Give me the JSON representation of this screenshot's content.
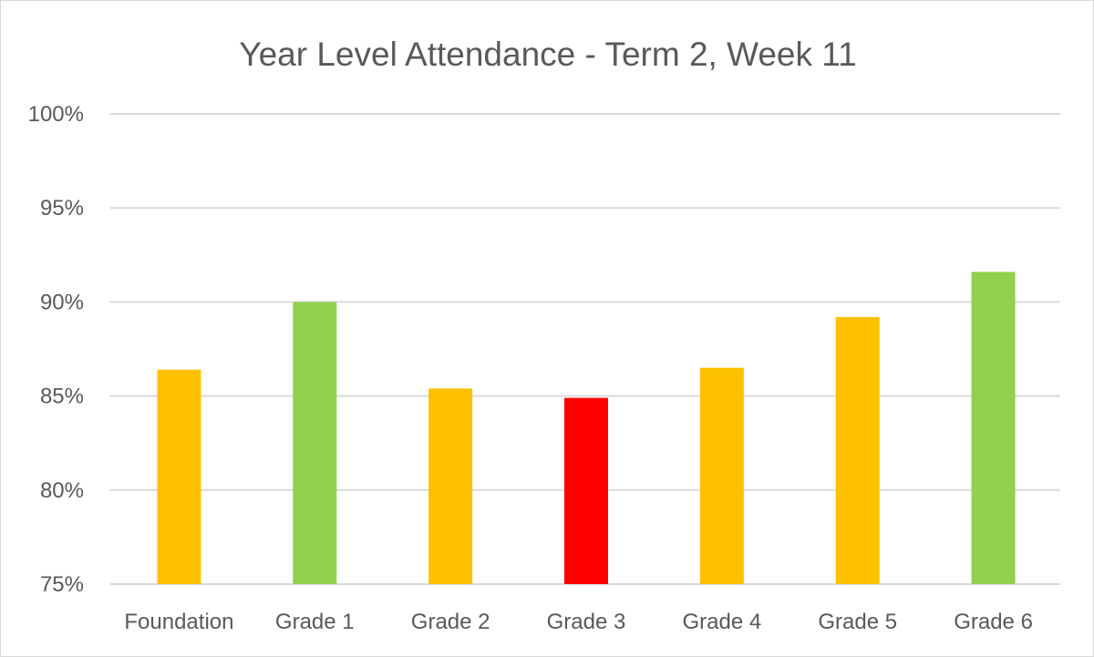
{
  "chart_data": {
    "type": "bar",
    "title": "Year Level Attendance - Term 2, Week 11",
    "xlabel": "",
    "ylabel": "",
    "ylim": [
      75,
      100
    ],
    "yticks": [
      100,
      95,
      90,
      85,
      80,
      75
    ],
    "ytick_labels": [
      "100%",
      "95%",
      "90%",
      "85%",
      "80%",
      "75%"
    ],
    "grid": true,
    "legend": "none",
    "categories": [
      "Foundation",
      "Grade 1",
      "Grade 2",
      "Grade 3",
      "Grade 4",
      "Grade 5",
      "Grade 6"
    ],
    "values": [
      86.4,
      90.0,
      85.4,
      84.9,
      86.5,
      89.2,
      91.6
    ],
    "bar_colors": [
      "#FFC000",
      "#92D050",
      "#FFC000",
      "#FF0000",
      "#FFC000",
      "#FFC000",
      "#92D050"
    ]
  }
}
